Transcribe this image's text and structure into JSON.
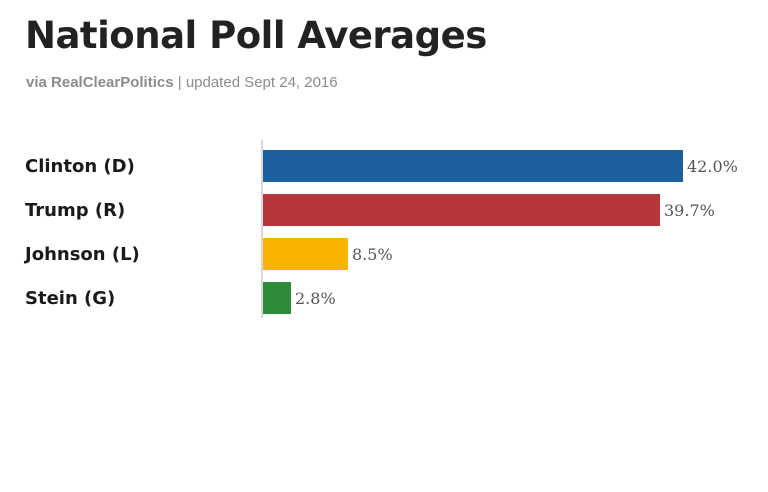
{
  "header": {
    "title": "National Poll Averages",
    "source": "via RealClearPolitics",
    "separator": " | ",
    "updated": "updated Sept 24, 2016"
  },
  "chart_data": {
    "type": "bar",
    "orientation": "horizontal",
    "title": "National Poll Averages",
    "subtitle": "via RealClearPolitics | updated Sept 24, 2016",
    "categories": [
      "Clinton (D)",
      "Trump (R)",
      "Johnson (L)",
      "Stein (G)"
    ],
    "values": [
      42.0,
      39.7,
      8.5,
      2.8
    ],
    "value_labels": [
      "42.0%",
      "39.7%",
      "8.5%",
      "2.8%"
    ],
    "colors": [
      "#1b5f9c",
      "#b5363b",
      "#f7b500",
      "#2e8b3a"
    ],
    "xlim": [
      0,
      42.0
    ],
    "unit": "%",
    "xlabel": "",
    "ylabel": "",
    "grid": false,
    "legend": "none"
  }
}
